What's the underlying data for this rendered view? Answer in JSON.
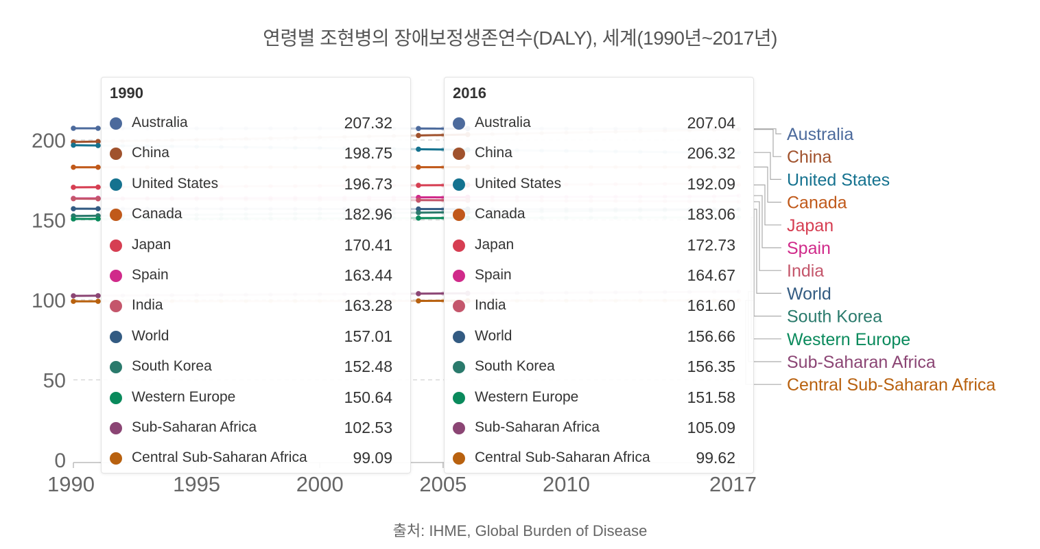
{
  "chart_data": {
    "type": "line",
    "title": "연령별 조현병의 장애보정생존연수(DALY), 세계(1990년~2017년)",
    "source": "출처: IHME, Global Burden of Disease",
    "xlim": [
      1990,
      2017
    ],
    "ylim": [
      0,
      210
    ],
    "x_ticks": [
      1990,
      1995,
      2000,
      2005,
      2010,
      2017
    ],
    "y_ticks": [
      0,
      50,
      100,
      150,
      200
    ],
    "grid": "y-dashed",
    "x_sample": [
      1990,
      1991,
      1992,
      1993,
      1994,
      1995,
      1996,
      1997,
      1998,
      1999,
      2000,
      2001,
      2002,
      2003,
      2004,
      2005,
      2006,
      2007,
      2008,
      2009,
      2010,
      2011,
      2012,
      2013,
      2014,
      2015,
      2016,
      2017
    ],
    "series": [
      {
        "name": "Australia",
        "color": "#4c6a9c",
        "v1990": 207.32,
        "v2016": 207.04,
        "v2017": 207.0
      },
      {
        "name": "China",
        "color": "#a0522d",
        "v1990": 198.75,
        "v2016": 206.32,
        "v2017": 206.6
      },
      {
        "name": "United States",
        "color": "#15728f",
        "v1990": 196.73,
        "v2016": 192.09,
        "v2017": 192.2
      },
      {
        "name": "Canada",
        "color": "#c0591a",
        "v1990": 182.96,
        "v2016": 183.06,
        "v2017": 183.1
      },
      {
        "name": "Japan",
        "color": "#d63e52",
        "v1990": 170.41,
        "v2016": 172.73,
        "v2017": 171.9
      },
      {
        "name": "Spain",
        "color": "#d02a8a",
        "v1990": 163.44,
        "v2016": 164.67,
        "v2017": 165.2
      },
      {
        "name": "India",
        "color": "#c4566b",
        "v1990": 163.28,
        "v2016": 161.6,
        "v2017": 161.4
      },
      {
        "name": "World",
        "color": "#335b82",
        "v1990": 157.01,
        "v2016": 156.66,
        "v2017": 156.7
      },
      {
        "name": "South Korea",
        "color": "#2a7a6c",
        "v1990": 152.48,
        "v2016": 156.35,
        "v2017": 156.4
      },
      {
        "name": "Western Europe",
        "color": "#0a8a5c",
        "v1990": 150.64,
        "v2016": 151.58,
        "v2017": 151.6
      },
      {
        "name": "Sub-Saharan Africa",
        "color": "#8b4574",
        "v1990": 102.53,
        "v2016": 105.09,
        "v2017": 105.2
      },
      {
        "name": "Central Sub-Saharan Africa",
        "color": "#b8610f",
        "v1990": 99.09,
        "v2016": 99.62,
        "v2017": 99.7
      }
    ]
  },
  "tooltips": [
    {
      "year": "1990",
      "rows": [
        {
          "name": "Australia",
          "value": "207.32"
        },
        {
          "name": "China",
          "value": "198.75"
        },
        {
          "name": "United States",
          "value": "196.73"
        },
        {
          "name": "Canada",
          "value": "182.96"
        },
        {
          "name": "Japan",
          "value": "170.41"
        },
        {
          "name": "Spain",
          "value": "163.44"
        },
        {
          "name": "India",
          "value": "163.28"
        },
        {
          "name": "World",
          "value": "157.01"
        },
        {
          "name": "South Korea",
          "value": "152.48"
        },
        {
          "name": "Western Europe",
          "value": "150.64"
        },
        {
          "name": "Sub-Saharan Africa",
          "value": "102.53"
        },
        {
          "name": "Central Sub-Saharan Africa",
          "value": "99.09"
        }
      ]
    },
    {
      "year": "2016",
      "rows": [
        {
          "name": "Australia",
          "value": "207.04"
        },
        {
          "name": "China",
          "value": "206.32"
        },
        {
          "name": "United States",
          "value": "192.09"
        },
        {
          "name": "Canada",
          "value": "183.06"
        },
        {
          "name": "Japan",
          "value": "172.73"
        },
        {
          "name": "Spain",
          "value": "164.67"
        },
        {
          "name": "India",
          "value": "161.60"
        },
        {
          "name": "World",
          "value": "156.66"
        },
        {
          "name": "South Korea",
          "value": "156.35"
        },
        {
          "name": "Western Europe",
          "value": "151.58"
        },
        {
          "name": "Sub-Saharan Africa",
          "value": "105.09"
        },
        {
          "name": "Central Sub-Saharan Africa",
          "value": "99.62"
        }
      ]
    }
  ]
}
